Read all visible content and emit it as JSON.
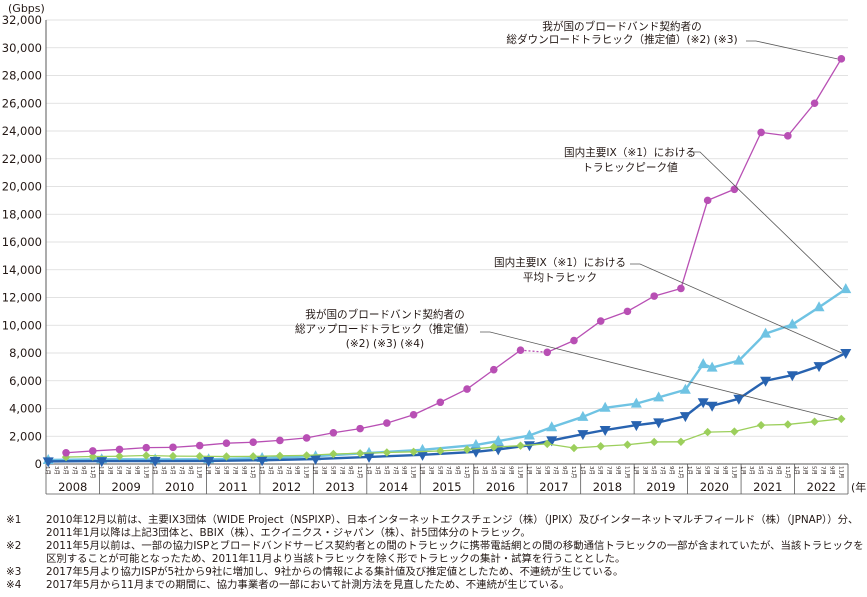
{
  "chart_data": {
    "type": "line",
    "y_unit": "(Gbps)",
    "x_unit": "(年)",
    "ylim": [
      0,
      32000
    ],
    "yticks": [
      "0",
      "2,000",
      "4,000",
      "6,000",
      "8,000",
      "10,000",
      "12,000",
      "14,000",
      "16,000",
      "18,000",
      "20,000",
      "22,000",
      "24,000",
      "26,000",
      "28,000",
      "30,000",
      "32,000"
    ],
    "years": [
      "2008",
      "2009",
      "2010",
      "2011",
      "2012",
      "2013",
      "2014",
      "2015",
      "2016",
      "2017",
      "2018",
      "2019",
      "2020",
      "2021",
      "2022"
    ],
    "month_labels": [
      "1月",
      "3月",
      "5月",
      "7月",
      "9月",
      "11月"
    ],
    "grid": true,
    "series": [
      {
        "name": "我が国のブロードバンド契約者の総ダウンロードトラヒック（推定値）(※2) (※3)",
        "color": "#b84fb4",
        "marker": "circle",
        "points": [
          [
            "2008-05",
            810
          ],
          [
            "2008-11",
            940
          ],
          [
            "2009-05",
            1050
          ],
          [
            "2009-11",
            1180
          ],
          [
            "2010-05",
            1200
          ],
          [
            "2010-11",
            1330
          ],
          [
            "2011-05",
            1500
          ],
          [
            "2011-11",
            1570
          ],
          [
            "2012-05",
            1700
          ],
          [
            "2012-11",
            1880
          ],
          [
            "2013-05",
            2250
          ],
          [
            "2013-11",
            2550
          ],
          [
            "2014-05",
            2950
          ],
          [
            "2014-11",
            3550
          ],
          [
            "2015-05",
            4450
          ],
          [
            "2015-11",
            5400
          ],
          [
            "2016-05",
            6800
          ],
          [
            "2016-11",
            8200
          ],
          [
            "2017-05",
            8050
          ],
          [
            "2017-11",
            8900
          ],
          [
            "2018-05",
            10300
          ],
          [
            "2018-11",
            11000
          ],
          [
            "2019-05",
            12100
          ],
          [
            "2019-11",
            12650
          ],
          [
            "2020-05",
            19000
          ],
          [
            "2020-11",
            19800
          ],
          [
            "2021-05",
            23900
          ],
          [
            "2021-11",
            23650
          ],
          [
            "2022-05",
            26000
          ],
          [
            "2022-11",
            29200
          ]
        ],
        "dashed_segment_after": "2016-11"
      },
      {
        "name": "国内主要IX（※1）におけるトラヒックピーク値",
        "color": "#6fc3e3",
        "marker": "triangle-up",
        "points": [
          [
            "2008-01",
            290
          ],
          [
            "2009-01",
            340
          ],
          [
            "2010-01",
            330
          ],
          [
            "2011-01",
            340
          ],
          [
            "2012-01",
            430
          ],
          [
            "2013-01",
            560
          ],
          [
            "2014-01",
            800
          ],
          [
            "2015-01",
            1020
          ],
          [
            "2016-01",
            1370
          ],
          [
            "2016-06",
            1650
          ],
          [
            "2017-01",
            2050
          ],
          [
            "2017-06",
            2650
          ],
          [
            "2018-01",
            3400
          ],
          [
            "2018-06",
            4050
          ],
          [
            "2019-01",
            4350
          ],
          [
            "2019-06",
            4800
          ],
          [
            "2019-12",
            5350
          ],
          [
            "2020-04",
            7200
          ],
          [
            "2020-06",
            6950
          ],
          [
            "2020-12",
            7450
          ],
          [
            "2021-06",
            9400
          ],
          [
            "2021-12",
            10050
          ],
          [
            "2022-06",
            11300
          ],
          [
            "2022-12",
            12600
          ]
        ]
      },
      {
        "name": "国内主要IX（※1）における平均トラヒック",
        "color": "#2863b0",
        "marker": "triangle-down",
        "points": [
          [
            "2008-01",
            190
          ],
          [
            "2009-01",
            210
          ],
          [
            "2010-01",
            215
          ],
          [
            "2011-01",
            220
          ],
          [
            "2012-01",
            270
          ],
          [
            "2013-01",
            360
          ],
          [
            "2014-01",
            510
          ],
          [
            "2015-01",
            660
          ],
          [
            "2016-01",
            880
          ],
          [
            "2016-06",
            1050
          ],
          [
            "2017-01",
            1350
          ],
          [
            "2017-06",
            1700
          ],
          [
            "2018-01",
            2150
          ],
          [
            "2018-06",
            2450
          ],
          [
            "2019-01",
            2800
          ],
          [
            "2019-06",
            3000
          ],
          [
            "2019-12",
            3450
          ],
          [
            "2020-04",
            4450
          ],
          [
            "2020-06",
            4200
          ],
          [
            "2020-12",
            4700
          ],
          [
            "2021-06",
            6000
          ],
          [
            "2021-12",
            6400
          ],
          [
            "2022-06",
            7050
          ],
          [
            "2022-12",
            8000
          ]
        ]
      },
      {
        "name": "我が国のブロードバンド契約者の総アップロードトラヒック（推定値）(※2) (※3) (※4)",
        "color": "#9ccf5c",
        "marker": "diamond",
        "points": [
          [
            "2008-05",
            500
          ],
          [
            "2008-11",
            540
          ],
          [
            "2009-05",
            560
          ],
          [
            "2009-11",
            610
          ],
          [
            "2010-05",
            570
          ],
          [
            "2010-11",
            560
          ],
          [
            "2011-05",
            540
          ],
          [
            "2011-11",
            550
          ],
          [
            "2012-05",
            590
          ],
          [
            "2012-11",
            620
          ],
          [
            "2013-05",
            720
          ],
          [
            "2013-11",
            770
          ],
          [
            "2014-05",
            830
          ],
          [
            "2014-11",
            880
          ],
          [
            "2015-05",
            940
          ],
          [
            "2015-11",
            1040
          ],
          [
            "2016-05",
            1220
          ],
          [
            "2016-11",
            1320
          ],
          [
            "2017-05",
            1450
          ],
          [
            "2017-11",
            1150
          ],
          [
            "2018-05",
            1280
          ],
          [
            "2018-11",
            1390
          ],
          [
            "2019-05",
            1590
          ],
          [
            "2019-11",
            1600
          ],
          [
            "2020-05",
            2300
          ],
          [
            "2020-11",
            2340
          ],
          [
            "2021-05",
            2800
          ],
          [
            "2021-11",
            2850
          ],
          [
            "2022-05",
            3050
          ],
          [
            "2022-11",
            3250
          ]
        ]
      }
    ],
    "annotations": [
      {
        "key": "download",
        "lines": [
          "我が国のブロードバンド契約者の",
          "総ダウンロードトラヒック（推定値）(※2) (※3)"
        ]
      },
      {
        "key": "ix_peak",
        "lines": [
          "国内主要IX（※1）における",
          "トラヒックピーク値"
        ]
      },
      {
        "key": "ix_avg",
        "lines": [
          "国内主要IX（※1）における",
          "平均トラヒック"
        ]
      },
      {
        "key": "upload",
        "lines": [
          "我が国のブロードバンド契約者の",
          "総アップロードトラヒック（推定値）",
          "(※2) (※3) (※4)"
        ]
      }
    ]
  },
  "notes": [
    {
      "mark": "※1",
      "text": "2010年12月以前は、主要IX3団体（WIDE Project（NSPIXP）、日本インターネットエクスチェンジ（株）（JPIX）及びインターネットマルチフィールド（株）（JPNAP））分、2011年1月以降は上記3団体と、BBIX（株）、エクイニクス・ジャパン（株）、計5団体分のトラヒック。"
    },
    {
      "mark": "※2",
      "text": "2011年5月以前は、一部の協力ISPとブロードバンドサービス契約者との間のトラヒックに携帯電話網との間の移動通信トラヒックの一部が含まれていたが、当該トラヒックを区別することが可能となったため、2011年11月より当該トラヒックを除く形でトラヒックの集計・試算を行うこととした。"
    },
    {
      "mark": "※3",
      "text": "2017年5月より協力ISPが5社から9社に増加し、9社からの情報による集計値及び推定値としたため、不連続が生じている。"
    },
    {
      "mark": "※4",
      "text": "2017年5月から11月までの期間に、協力事業者の一部において計測方法を見直したため、不連続が生じている。"
    }
  ]
}
